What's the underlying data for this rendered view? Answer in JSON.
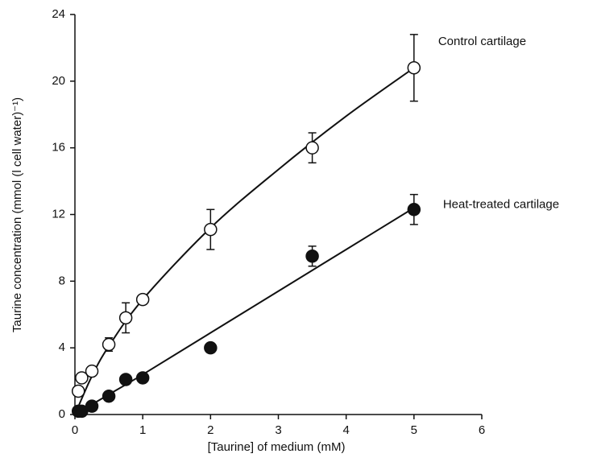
{
  "chart_data": {
    "type": "scatter",
    "xlabel": "[Taurine] of medium (mM)",
    "ylabel": "Taurine concentration (mmol (l cell water)⁻¹)",
    "xlim": [
      0,
      6
    ],
    "xticks": [
      0,
      1,
      2,
      3,
      4,
      5,
      6
    ],
    "ylim": [
      0,
      24
    ],
    "yticks": [
      0,
      4,
      8,
      12,
      16,
      20,
      24
    ],
    "x": [
      0.05,
      0.1,
      0.25,
      0.5,
      0.75,
      1,
      2,
      3.5,
      5
    ],
    "fit_x": [
      0,
      0.25,
      0.5,
      1,
      2,
      3,
      4,
      5
    ],
    "series": [
      {
        "name": "Control cartilage",
        "color": "#ffffff",
        "values": [
          1.4,
          2.2,
          2.6,
          4.2,
          5.8,
          6.9,
          11.1,
          16.0,
          20.8
        ],
        "errors": [
          null,
          null,
          null,
          0.4,
          0.9,
          null,
          1.2,
          0.9,
          2.0
        ],
        "fit": [
          0,
          2.3,
          4.1,
          6.9,
          11.2,
          14.7,
          17.9,
          20.8
        ]
      },
      {
        "name": "Heat-treated cartilage",
        "color": "#111111",
        "values": [
          0.2,
          0.2,
          0.5,
          1.1,
          2.1,
          2.2,
          4.0,
          9.5,
          12.3
        ],
        "errors": [
          null,
          null,
          null,
          null,
          null,
          null,
          null,
          0.6,
          0.9
        ],
        "fit": [
          0,
          0.6,
          1.2,
          2.4,
          4.9,
          7.4,
          9.9,
          12.4
        ]
      }
    ]
  }
}
